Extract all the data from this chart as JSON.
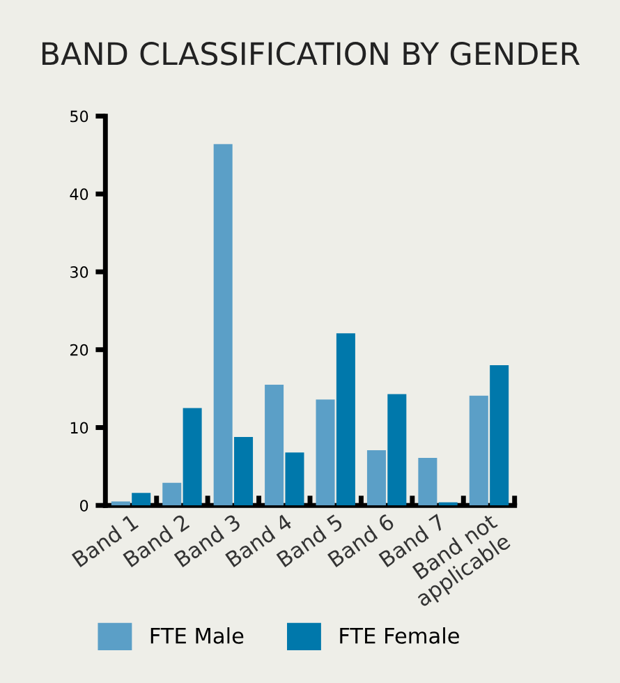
{
  "chart_data": {
    "type": "bar",
    "title": "BAND CLASSIFICATION BY GENDER",
    "categories": [
      "Band 1",
      "Band 2",
      "Band 3",
      "Band 4",
      "Band 5",
      "Band 6",
      "Band 7",
      "Band not\napplicable"
    ],
    "series": [
      {
        "name": "FTE Male",
        "color": "#5b9fc7",
        "values": [
          0.5,
          2.9,
          46.4,
          15.5,
          13.6,
          7.1,
          6.1,
          14.1
        ]
      },
      {
        "name": "FTE Female",
        "color": "#0078ab",
        "values": [
          1.6,
          12.5,
          8.8,
          6.8,
          22.1,
          14.3,
          0.4,
          18.0
        ]
      }
    ],
    "ylim": [
      0,
      50
    ],
    "yticks": [
      0,
      10,
      20,
      30,
      40,
      50
    ],
    "grid": false,
    "legend": "bottom"
  }
}
